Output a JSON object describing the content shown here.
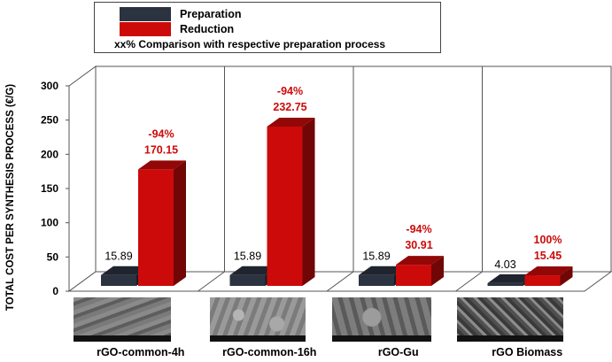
{
  "legend": {
    "preparation_label": "Preparation",
    "reduction_label": "Reduction",
    "note": "xx% Comparison with respective preparation process"
  },
  "colors": {
    "preparation": "#2b3240",
    "reduction": "#cc0a0a",
    "annotation": "#cc0a0a",
    "value_label": "#000000"
  },
  "chart_data": {
    "type": "bar",
    "ylabel": "TOTAL COST PER SYNTHESIS PROCESS  (€/G)",
    "ylim": [
      0,
      300
    ],
    "yticks": [
      0,
      50,
      100,
      150,
      200,
      250,
      300
    ],
    "categories": [
      "rGO-common-4h",
      "rGO-common-16h",
      "rGO-Gu",
      "rGO Biomass"
    ],
    "series": [
      {
        "name": "Preparation",
        "values": [
          15.89,
          15.89,
          15.89,
          4.03
        ],
        "labels": [
          "15.89",
          "15.89",
          "15.89",
          "4.03"
        ]
      },
      {
        "name": "Reduction",
        "values": [
          170.15,
          232.75,
          30.91,
          15.45
        ],
        "labels": [
          "170.15",
          "232.75",
          "30.91",
          "15.45"
        ]
      }
    ],
    "annotations": [
      "-94%",
      "-94%",
      "-94%",
      "100%"
    ],
    "grid": true,
    "legend_position": "top"
  }
}
